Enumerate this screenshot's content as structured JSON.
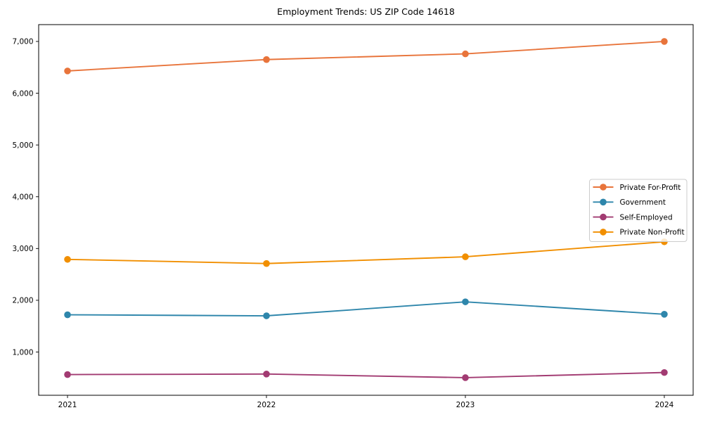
{
  "chart_data": {
    "type": "line",
    "title": "Employment Trends: US ZIP Code 14618",
    "xlabel": "",
    "ylabel": "",
    "x": [
      2021,
      2022,
      2023,
      2024
    ],
    "x_tick_labels": [
      "2021",
      "2022",
      "2023",
      "2024"
    ],
    "series": [
      {
        "name": "Private For-Profit",
        "color": "#E8743B",
        "values": [
          6430,
          6650,
          6760,
          7000
        ]
      },
      {
        "name": "Government",
        "color": "#2E86AB",
        "values": [
          1720,
          1700,
          1970,
          1730
        ]
      },
      {
        "name": "Self-Employed",
        "color": "#A23B72",
        "values": [
          565,
          575,
          505,
          605
        ]
      },
      {
        "name": "Private Non-Profit",
        "color": "#F18F01",
        "values": [
          2790,
          2710,
          2840,
          3130
        ]
      }
    ],
    "y_ticks": [
      1000,
      2000,
      3000,
      4000,
      5000,
      6000,
      7000
    ],
    "y_tick_labels": [
      "1,000",
      "2,000",
      "3,000",
      "4,000",
      "5,000",
      "6,000",
      "7,000"
    ],
    "ylim": [
      165,
      7325
    ],
    "xlim": [
      2020.855,
      2024.145
    ],
    "grid": false,
    "legend": {
      "position": "center-right",
      "entries": [
        "Private For-Profit",
        "Government",
        "Self-Employed",
        "Private Non-Profit"
      ]
    },
    "axis_color": "#000000",
    "background_color": "#ffffff"
  }
}
